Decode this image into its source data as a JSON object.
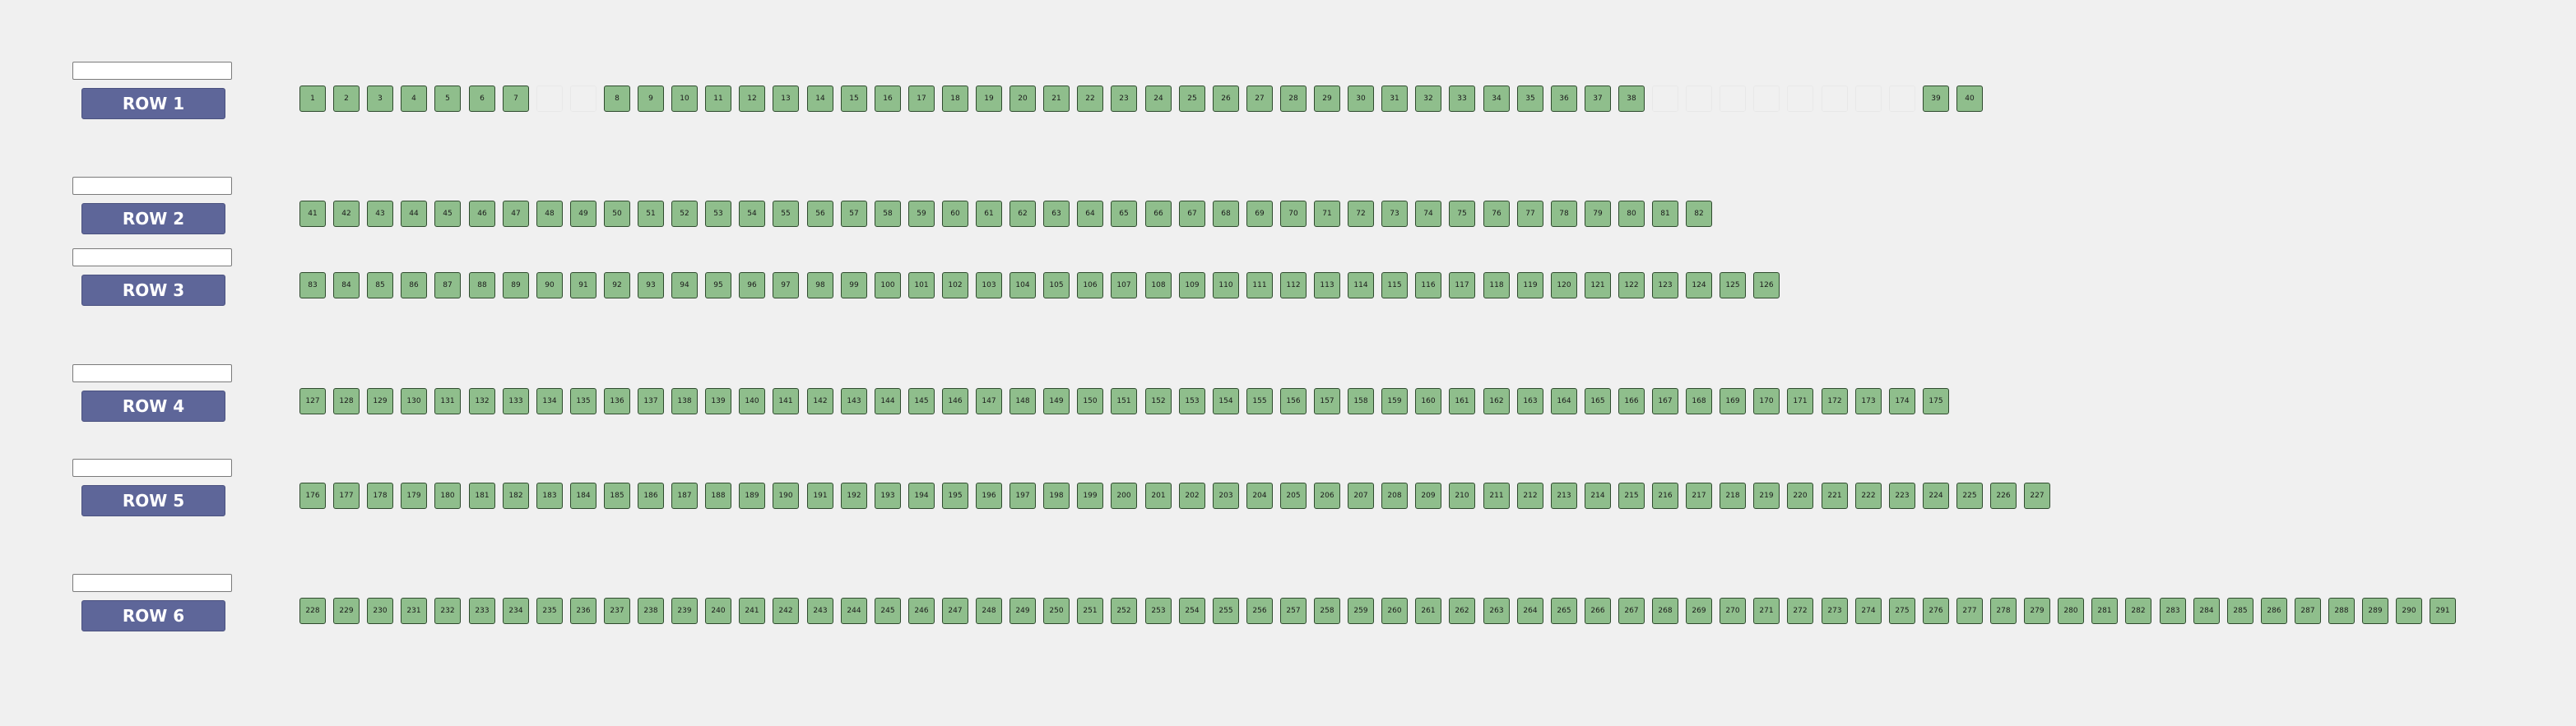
{
  "colors": {
    "background": "#f0f0f0",
    "row_button": "#5e6699",
    "seat_fill": "#8fbe8c",
    "seat_border": "#2e4a2d"
  },
  "rows": [
    {
      "label": "ROW 1",
      "input_value": "",
      "slots": [
        "1",
        "2",
        "3",
        "4",
        "5",
        "6",
        "7",
        null,
        null,
        "8",
        "9",
        "10",
        "11",
        "12",
        "13",
        "14",
        "15",
        "16",
        "17",
        "18",
        "19",
        "20",
        "21",
        "22",
        "23",
        "24",
        "25",
        "26",
        "27",
        "28",
        "29",
        "30",
        "31",
        "32",
        "33",
        "34",
        "35",
        "36",
        "37",
        "38",
        null,
        null,
        null,
        null,
        null,
        null,
        null,
        null,
        "39",
        "40"
      ]
    },
    {
      "label": "ROW 2",
      "input_value": "",
      "slots": [
        "41",
        "42",
        "43",
        "44",
        "45",
        "46",
        "47",
        "48",
        "49",
        "50",
        "51",
        "52",
        "53",
        "54",
        "55",
        "56",
        "57",
        "58",
        "59",
        "60",
        "61",
        "62",
        "63",
        "64",
        "65",
        "66",
        "67",
        "68",
        "69",
        "70",
        "71",
        "72",
        "73",
        "74",
        "75",
        "76",
        "77",
        "78",
        "79",
        "80",
        "81",
        "82"
      ]
    },
    {
      "label": "ROW 3",
      "input_value": "",
      "slots": [
        "83",
        "84",
        "85",
        "86",
        "87",
        "88",
        "89",
        "90",
        "91",
        "92",
        "93",
        "94",
        "95",
        "96",
        "97",
        "98",
        "99",
        "100",
        "101",
        "102",
        "103",
        "104",
        "105",
        "106",
        "107",
        "108",
        "109",
        "110",
        "111",
        "112",
        "113",
        "114",
        "115",
        "116",
        "117",
        "118",
        "119",
        "120",
        "121",
        "122",
        "123",
        "124",
        "125",
        "126"
      ]
    },
    {
      "label": "ROW 4",
      "input_value": "",
      "slots": [
        "127",
        "128",
        "129",
        "130",
        "131",
        "132",
        "133",
        "134",
        "135",
        "136",
        "137",
        "138",
        "139",
        "140",
        "141",
        "142",
        "143",
        "144",
        "145",
        "146",
        "147",
        "148",
        "149",
        "150",
        "151",
        "152",
        "153",
        "154",
        "155",
        "156",
        "157",
        "158",
        "159",
        "160",
        "161",
        "162",
        "163",
        "164",
        "165",
        "166",
        "167",
        "168",
        "169",
        "170",
        "171",
        "172",
        "173",
        "174",
        "175"
      ]
    },
    {
      "label": "ROW 5",
      "input_value": "",
      "slots": [
        "176",
        "177",
        "178",
        "179",
        "180",
        "181",
        "182",
        "183",
        "184",
        "185",
        "186",
        "187",
        "188",
        "189",
        "190",
        "191",
        "192",
        "193",
        "194",
        "195",
        "196",
        "197",
        "198",
        "199",
        "200",
        "201",
        "202",
        "203",
        "204",
        "205",
        "206",
        "207",
        "208",
        "209",
        "210",
        "211",
        "212",
        "213",
        "214",
        "215",
        "216",
        "217",
        "218",
        "219",
        "220",
        "221",
        "222",
        "223",
        "224",
        "225",
        "226",
        "227"
      ]
    },
    {
      "label": "ROW 6",
      "input_value": "",
      "slots": [
        "228",
        "229",
        "230",
        "231",
        "232",
        "233",
        "234",
        "235",
        "236",
        "237",
        "238",
        "239",
        "240",
        "241",
        "242",
        "243",
        "244",
        "245",
        "246",
        "247",
        "248",
        "249",
        "250",
        "251",
        "252",
        "253",
        "254",
        "255",
        "256",
        "257",
        "258",
        "259",
        "260",
        "261",
        "262",
        "263",
        "264",
        "265",
        "266",
        "267",
        "268",
        "269",
        "270",
        "271",
        "272",
        "273",
        "274",
        "275",
        "276",
        "277",
        "278",
        "279",
        "280",
        "281",
        "282",
        "283",
        "284",
        "285",
        "286",
        "287",
        "288",
        "289",
        "290",
        "291"
      ]
    }
  ]
}
